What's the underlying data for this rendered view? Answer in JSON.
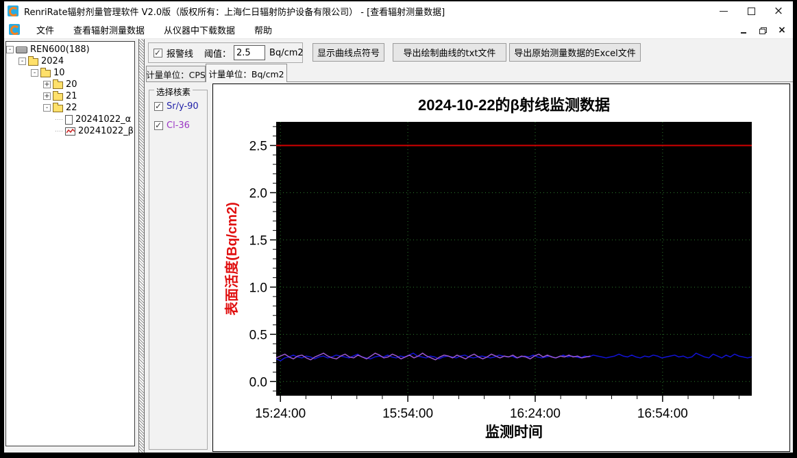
{
  "window": {
    "title": "RenriRate辐射剂量管理软件 V2.0版（版权所有：上海仁日辐射防护设备有限公司） - [查看辐射测量数据]"
  },
  "menu": {
    "items": [
      {
        "name": "menu-file",
        "label": "文件"
      },
      {
        "name": "menu-view-measurement-data",
        "label": "查看辐射测量数据"
      },
      {
        "name": "menu-download-from-device",
        "label": "从仪器中下载数据"
      },
      {
        "name": "menu-help",
        "label": "帮助"
      }
    ]
  },
  "tree": {
    "items": [
      {
        "name": "tree-item-ren600",
        "label": "REN600(188)",
        "level": 0,
        "expander": "minus",
        "icon": "device"
      },
      {
        "name": "tree-item-2024",
        "label": "2024",
        "level": 1,
        "expander": "minus",
        "icon": "folder"
      },
      {
        "name": "tree-item-10",
        "label": "10",
        "level": 2,
        "expander": "minus",
        "icon": "folder"
      },
      {
        "name": "tree-item-20",
        "label": "20",
        "level": 3,
        "expander": "plus",
        "icon": "folder"
      },
      {
        "name": "tree-item-21",
        "label": "21",
        "level": 3,
        "expander": "plus",
        "icon": "folder"
      },
      {
        "name": "tree-item-22",
        "label": "22",
        "level": 3,
        "expander": "minus",
        "icon": "folder"
      },
      {
        "name": "tree-item-20241022-alpha",
        "label": "20241022_α",
        "level": 4,
        "expander": null,
        "icon": "document"
      },
      {
        "name": "tree-item-20241022-beta",
        "label": "20241022_β",
        "level": 4,
        "expander": null,
        "icon": "chart-file"
      }
    ]
  },
  "toolbar": {
    "alarm": {
      "label": "报警线",
      "checked": true
    },
    "threshold": {
      "label": "阈值：",
      "value": "2.5",
      "unit": "Bq/cm2"
    },
    "buttons": [
      {
        "name": "show-curve-points-button",
        "label": "显示曲线点符号"
      },
      {
        "name": "export-curve-txt-button",
        "label": "导出绘制曲线的txt文件"
      },
      {
        "name": "export-raw-excel-button",
        "label": "导出原始测量数据的Excel文件"
      }
    ]
  },
  "tabs": [
    {
      "name": "tab-unit-cps",
      "label": "计量单位：CPS",
      "active": false
    },
    {
      "name": "tab-unit-bq-cm2",
      "label": "计量单位：Bq/cm2",
      "active": true
    }
  ],
  "nuclide_panel": {
    "title": "选择核素",
    "items": [
      {
        "name": "nuclide-checkbox-sr-y-90",
        "label": "Sr/y-90",
        "checked": true,
        "label_color": "#2121a8"
      },
      {
        "name": "nuclide-checkbox-cl-36",
        "label": "Cl-36",
        "checked": true,
        "label_color": "#9a35c4"
      }
    ]
  },
  "chart_data": {
    "type": "line",
    "title": "2024-10-22的β射线监测数据",
    "xlabel": "监测时间",
    "ylabel": "表面活度(Bq/cm2)",
    "plot_bg": "#000000",
    "grid_color": "#2e7d2e",
    "ylabel_color": "#e01010",
    "xlim_min": [
      -1,
      111
    ],
    "ylim": [
      -0.15,
      2.75
    ],
    "x_ticks": [
      {
        "min": 0,
        "label": "15:24:00"
      },
      {
        "min": 30,
        "label": "15:54:00"
      },
      {
        "min": 60,
        "label": "16:24:00"
      },
      {
        "min": 90,
        "label": "16:54:00"
      }
    ],
    "x_minor_step_min": 6,
    "y_ticks": [
      {
        "v": 0.0,
        "label": "0.0"
      },
      {
        "v": 0.5,
        "label": "0.5"
      },
      {
        "v": 1.0,
        "label": "1.0"
      },
      {
        "v": 1.5,
        "label": "1.5"
      },
      {
        "v": 2.0,
        "label": "2.0"
      },
      {
        "v": 2.5,
        "label": "2.5"
      }
    ],
    "y_minor_step": 0.1,
    "alarm_line": {
      "value": 2.5,
      "color": "#d40000"
    },
    "series": [
      {
        "name": "Sr/y-90",
        "color": "#1212d6",
        "x_start_min": -1,
        "x_end_min": 111,
        "values": [
          0.24,
          0.22,
          0.25,
          0.26,
          0.28,
          0.26,
          0.25,
          0.27,
          0.26,
          0.24,
          0.26,
          0.27,
          0.25,
          0.26,
          0.28,
          0.27,
          0.26,
          0.25,
          0.27,
          0.29,
          0.26,
          0.25,
          0.24,
          0.26,
          0.27,
          0.26,
          0.28,
          0.26,
          0.25,
          0.27,
          0.26,
          0.28,
          0.3,
          0.27,
          0.26,
          0.25,
          0.27,
          0.26,
          0.24,
          0.26,
          0.27,
          0.26,
          0.25,
          0.27,
          0.28,
          0.26,
          0.25,
          0.26,
          0.27,
          0.26,
          0.25,
          0.26,
          0.28,
          0.27,
          0.26,
          0.27,
          0.25,
          0.26,
          0.27,
          0.26,
          0.28,
          0.26,
          0.25,
          0.26,
          0.27,
          0.25,
          0.26,
          0.28,
          0.26,
          0.27,
          0.26,
          0.25,
          0.27,
          0.26,
          0.28,
          0.27,
          0.26,
          0.25,
          0.26,
          0.27,
          0.29,
          0.27,
          0.26,
          0.28,
          0.26,
          0.25,
          0.27,
          0.26,
          0.28,
          0.27,
          0.25,
          0.26,
          0.27,
          0.28,
          0.26,
          0.27,
          0.25,
          0.26,
          0.3,
          0.28,
          0.26,
          0.25,
          0.29,
          0.27,
          0.25,
          0.28,
          0.26,
          0.29,
          0.27,
          0.26,
          0.25,
          0.26
        ]
      },
      {
        "name": "Cl-36",
        "color": "#9b59d0",
        "x_start_min": -1,
        "x_end_min": 73,
        "values": [
          0.25,
          0.27,
          0.29,
          0.26,
          0.24,
          0.27,
          0.28,
          0.25,
          0.23,
          0.26,
          0.28,
          0.3,
          0.27,
          0.25,
          0.24,
          0.27,
          0.29,
          0.26,
          0.25,
          0.28,
          0.26,
          0.24,
          0.27,
          0.3,
          0.28,
          0.25,
          0.26,
          0.29,
          0.27,
          0.24,
          0.26,
          0.28,
          0.25,
          0.27,
          0.3,
          0.27,
          0.25,
          0.23,
          0.26,
          0.28,
          0.27,
          0.25,
          0.28,
          0.26,
          0.24,
          0.27,
          0.29,
          0.26,
          0.24,
          0.26,
          0.29,
          0.27,
          0.25,
          0.27,
          0.26,
          0.28,
          0.25,
          0.27,
          0.26,
          0.24,
          0.27,
          0.29,
          0.26,
          0.28,
          0.26,
          0.25,
          0.27,
          0.26,
          0.28,
          0.26,
          0.27,
          0.25,
          0.26,
          0.27
        ]
      }
    ]
  }
}
